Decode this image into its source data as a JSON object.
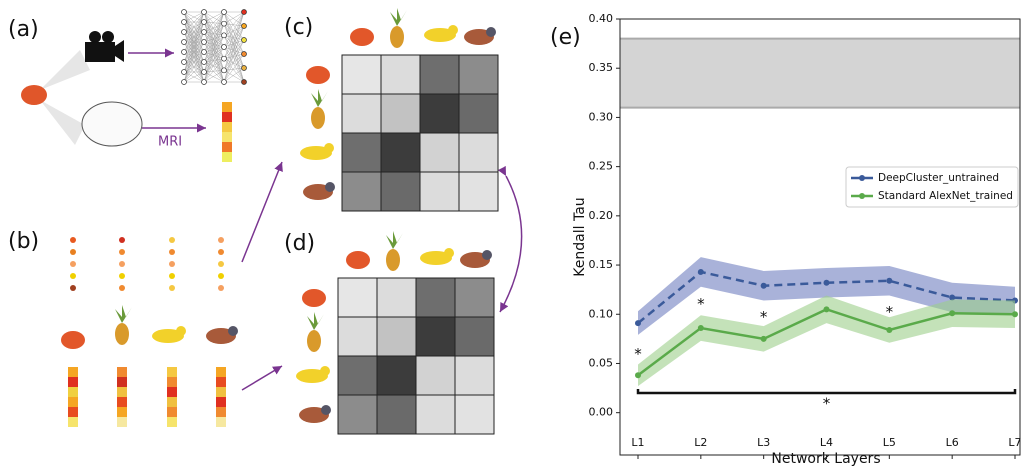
{
  "panel_labels": [
    "(a)",
    "(b)",
    "(c)",
    "(d)",
    "(e)"
  ],
  "diagram": {
    "mri_label": "MRI"
  },
  "chart_data": {
    "type": "line",
    "xlabel": "Network Layers",
    "ylabel": "Kendall Tau",
    "categories": [
      "L1",
      "L2",
      "L3",
      "L4",
      "L5",
      "L6",
      "L7"
    ],
    "series": [
      {
        "name": "DeepCluster_untrained",
        "color": "#3a5a9a",
        "dash": true,
        "band_color": "#6f7fbf",
        "values": [
          0.091,
          0.143,
          0.129,
          0.132,
          0.134,
          0.117,
          0.114
        ],
        "errors": [
          0.012,
          0.015,
          0.015,
          0.015,
          0.015,
          0.015,
          0.014
        ]
      },
      {
        "name": "Standard AlexNet_trained",
        "color": "#5aaa4a",
        "dash": false,
        "band_color": "#9ccf8a",
        "values": [
          0.038,
          0.086,
          0.075,
          0.105,
          0.084,
          0.101,
          0.1
        ],
        "errors": [
          0.011,
          0.013,
          0.013,
          0.014,
          0.013,
          0.014,
          0.014
        ]
      }
    ],
    "ceiling_band": [
      0.31,
      0.38
    ],
    "ylim": [
      -0.043,
      0.4
    ],
    "yticks": [
      {
        "value": 0,
        "label": "0.00"
      },
      {
        "value": 0.05,
        "label": "0.05"
      },
      {
        "value": 0.1,
        "label": "0.10"
      },
      {
        "value": 0.15,
        "label": "0.15"
      },
      {
        "value": 0.2,
        "label": "0.20"
      },
      {
        "value": 0.25,
        "label": "0.25"
      },
      {
        "value": 0.3,
        "label": "0.30"
      },
      {
        "value": 0.35,
        "label": "0.35"
      },
      {
        "value": 0.4,
        "label": "0.40"
      }
    ],
    "annotations": [
      {
        "text": "*",
        "x": "L1",
        "y": 0.063
      },
      {
        "text": "*",
        "x": "L2",
        "y": 0.114
      },
      {
        "text": "*",
        "x": "L3",
        "y": 0.101
      },
      {
        "text": "*",
        "x": "L5",
        "y": 0.106
      }
    ],
    "bracket": {
      "y": 0.02,
      "from": "L1",
      "to": "L7",
      "text": "*",
      "text_y": 0.013
    },
    "legend": "center right"
  }
}
